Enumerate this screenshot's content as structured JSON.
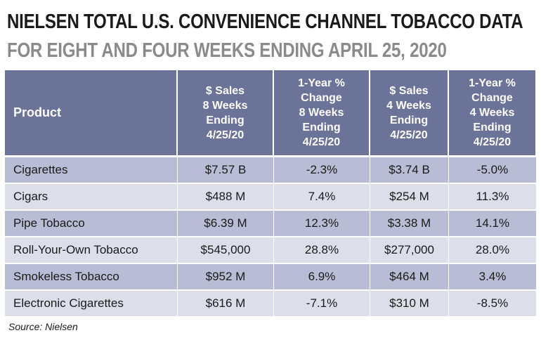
{
  "title": "NIELSEN TOTAL U.S. CONVENIENCE CHANNEL TOBACCO DATA",
  "subtitle": "FOR EIGHT AND FOUR WEEKS ENDING APRIL 25, 2020",
  "table": {
    "headers": [
      "Product",
      "$ Sales\n8 Weeks\nEnding\n4/25/20",
      "1-Year %\nChange\n8 Weeks\nEnding\n4/25/20",
      "$ Sales\n4 Weeks\nEnding\n4/25/20",
      "1-Year %\nChange\n4 Weeks\nEnding\n4/25/20"
    ],
    "rows": [
      [
        "Cigarettes",
        "$7.57 B",
        "-2.3%",
        "$3.74 B",
        "-5.0%"
      ],
      [
        "Cigars",
        "$488 M",
        "7.4%",
        "$254 M",
        "11.3%"
      ],
      [
        "Pipe Tobacco",
        "$6.39 M",
        "12.3%",
        "$3.38 M",
        "14.1%"
      ],
      [
        "Roll-Your-Own Tobacco",
        "$545,000",
        "28.8%",
        "$277,000",
        "28.0%"
      ],
      [
        "Smokeless Tobacco",
        "$952 M",
        "6.9%",
        "$464 M",
        "3.4%"
      ],
      [
        "Electronic Cigarettes",
        "$616 M",
        "-7.1%",
        "$310 M",
        "-8.5%"
      ]
    ]
  },
  "source": "Source: Nielsen",
  "colors": {
    "header_bg": "#6b7398",
    "row_dark": "#b8bcd4",
    "row_light": "#dcdeea",
    "title_dark": "#1a1a1a",
    "title_gray": "#8a8a8a"
  }
}
